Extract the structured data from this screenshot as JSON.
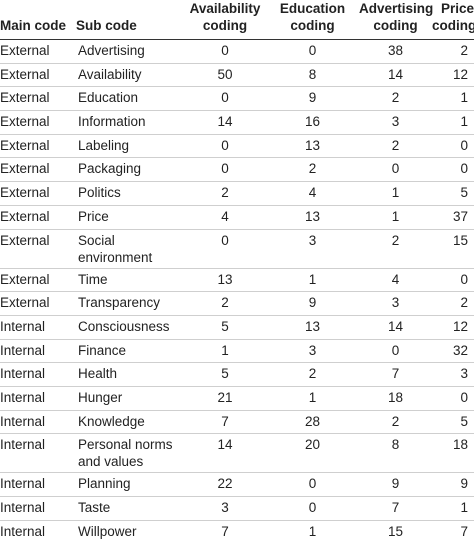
{
  "table": {
    "headers": [
      "Main code",
      "Sub code",
      "Availability coding",
      "Education coding",
      "Advertising coding",
      "Price coding"
    ],
    "header_lines": [
      [
        "Main code"
      ],
      [
        "Sub code"
      ],
      [
        "Availability",
        "coding"
      ],
      [
        "Education",
        "coding"
      ],
      [
        "Advertising",
        "coding"
      ],
      [
        "Price",
        "coding"
      ]
    ],
    "rows": [
      {
        "main": "External",
        "sub": [
          "Advertising"
        ],
        "availability": "0",
        "education": "0",
        "advertising": "38",
        "price": "2"
      },
      {
        "main": "External",
        "sub": [
          "Availability"
        ],
        "availability": "50",
        "education": "8",
        "advertising": "14",
        "price": "12"
      },
      {
        "main": "External",
        "sub": [
          "Education"
        ],
        "availability": "0",
        "education": "9",
        "advertising": "2",
        "price": "1"
      },
      {
        "main": "External",
        "sub": [
          "Information"
        ],
        "availability": "14",
        "education": "16",
        "advertising": "3",
        "price": "1"
      },
      {
        "main": "External",
        "sub": [
          "Labeling"
        ],
        "availability": "0",
        "education": "13",
        "advertising": "2",
        "price": "0"
      },
      {
        "main": "External",
        "sub": [
          "Packaging"
        ],
        "availability": "0",
        "education": "2",
        "advertising": "0",
        "price": "0"
      },
      {
        "main": "External",
        "sub": [
          "Politics"
        ],
        "availability": "2",
        "education": "4",
        "advertising": "1",
        "price": "5"
      },
      {
        "main": "External",
        "sub": [
          "Price"
        ],
        "availability": "4",
        "education": "13",
        "advertising": "1",
        "price": "37"
      },
      {
        "main": "External",
        "sub": [
          "Social",
          "environment"
        ],
        "availability": "0",
        "education": "3",
        "advertising": "2",
        "price": "15"
      },
      {
        "main": "External",
        "sub": [
          "Time"
        ],
        "availability": "13",
        "education": "1",
        "advertising": "4",
        "price": "0"
      },
      {
        "main": "External",
        "sub": [
          "Transparency"
        ],
        "availability": "2",
        "education": "9",
        "advertising": "3",
        "price": "2"
      },
      {
        "main": "Internal",
        "sub": [
          "Consciousness"
        ],
        "availability": "5",
        "education": "13",
        "advertising": "14",
        "price": "12"
      },
      {
        "main": "Internal",
        "sub": [
          "Finance"
        ],
        "availability": "1",
        "education": "3",
        "advertising": "0",
        "price": "32"
      },
      {
        "main": "Internal",
        "sub": [
          "Health"
        ],
        "availability": "5",
        "education": "2",
        "advertising": "7",
        "price": "3"
      },
      {
        "main": "Internal",
        "sub": [
          "Hunger"
        ],
        "availability": "21",
        "education": "1",
        "advertising": "18",
        "price": "0"
      },
      {
        "main": "Internal",
        "sub": [
          "Knowledge"
        ],
        "availability": "7",
        "education": "28",
        "advertising": "2",
        "price": "5"
      },
      {
        "main": "Internal",
        "sub": [
          "Personal norms",
          "and values"
        ],
        "availability": "14",
        "education": "20",
        "advertising": "8",
        "price": "18"
      },
      {
        "main": "Internal",
        "sub": [
          "Planning"
        ],
        "availability": "22",
        "education": "0",
        "advertising": "9",
        "price": "9"
      },
      {
        "main": "Internal",
        "sub": [
          "Taste"
        ],
        "availability": "3",
        "education": "0",
        "advertising": "7",
        "price": "1"
      },
      {
        "main": "Internal",
        "sub": [
          "Willpower"
        ],
        "availability": "7",
        "education": "1",
        "advertising": "15",
        "price": "7"
      }
    ]
  }
}
